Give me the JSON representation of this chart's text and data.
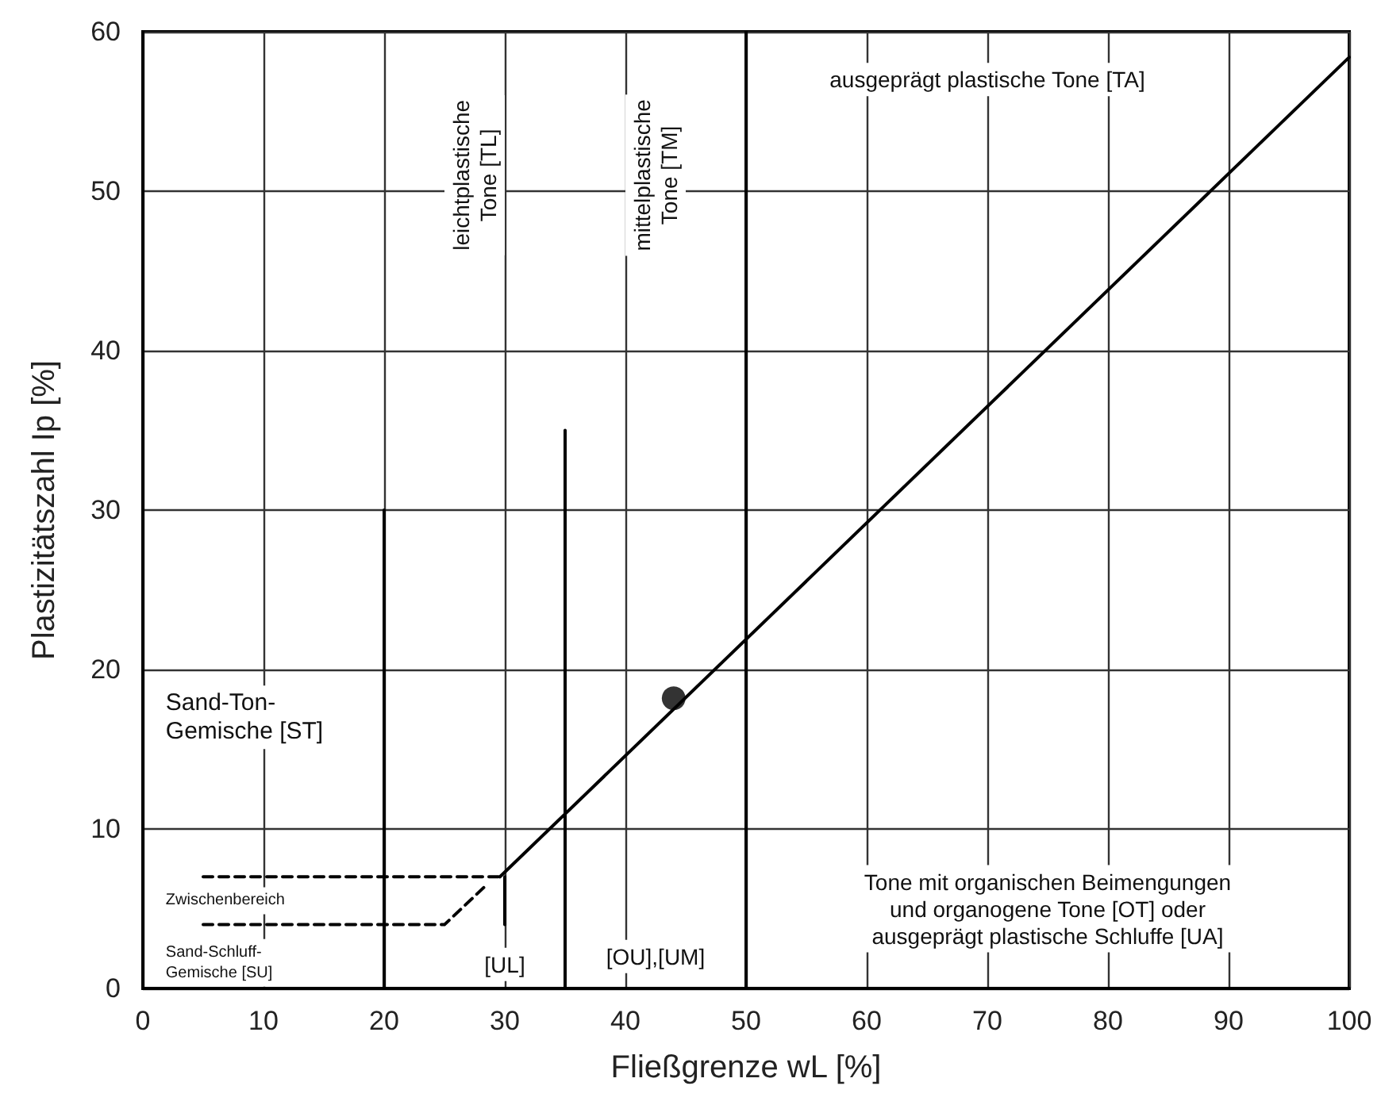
{
  "chart_data": {
    "type": "line",
    "xlabel": "Fließgrenze wL [%]",
    "ylabel": "Plastizitätszahl Ip [%]",
    "xlim": [
      0,
      100
    ],
    "xticks": [
      0,
      10,
      20,
      30,
      40,
      50,
      60,
      70,
      80,
      90,
      100
    ],
    "ylim": [
      0,
      60
    ],
    "yticks": [
      0,
      10,
      20,
      30,
      40,
      50,
      60
    ],
    "grid": true,
    "marker": "none",
    "line_style": "solid",
    "series": [
      {
        "color": "#000000",
        "x": [
          29.6,
          100
        ],
        "values": [
          7,
          58.4
        ]
      },
      {
        "color": "#000000",
        "x": [
          20,
          20
        ],
        "values": [
          0,
          30
        ]
      },
      {
        "color": "#000000",
        "x": [
          35,
          35
        ],
        "values": [
          0,
          35
        ]
      },
      {
        "color": "#000000",
        "x": [
          50,
          50
        ],
        "values": [
          0,
          60
        ]
      },
      {
        "color": "#000000",
        "x": [
          30,
          30
        ],
        "values": [
          4,
          7
        ]
      },
      {
        "color": "#000000",
        "line_style": "dashed",
        "x": [
          5,
          29.6
        ],
        "values": [
          7,
          7
        ]
      },
      {
        "color": "#000000",
        "line_style": "dashed",
        "x": [
          5,
          25,
          28.5
        ],
        "values": [
          4,
          4,
          6.5
        ]
      },
      {
        "type": "scatter",
        "color": "#000000",
        "marker": "circle",
        "x": [
          44
        ],
        "values": [
          18.2
        ]
      }
    ],
    "annotations": [
      "Sand-Ton-\nGemische [ST]",
      "leichtplastische\nTone [TL]",
      "mittelplastische\nTone [TM]",
      "ausgeprägt plastische Tone [TA]",
      "Zwischenbereich",
      "Sand-Schluff-\nGemische [SU]",
      {
        "text": "[UL]",
        "x": 30,
        "y": 1.5
      },
      "[OU],[UM]",
      "Tone mit organischen Beimengungen\nund organogene Tone [OT] oder\nausgeprägt plastische Schluffe [UA]"
    ]
  }
}
